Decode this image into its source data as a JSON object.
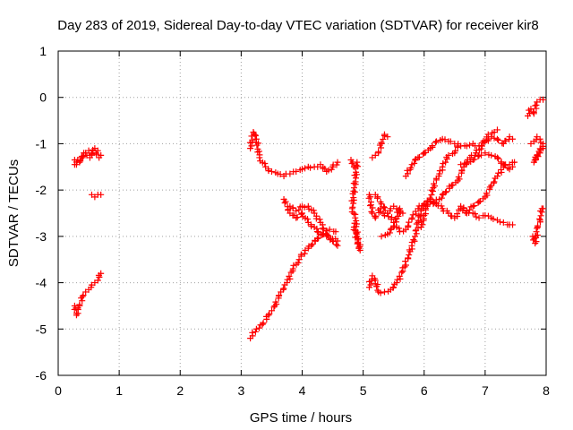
{
  "chart_data": {
    "type": "scatter",
    "title": "Day 283 of 2019, Sidereal Day-to-day VTEC variation (SDTVAR) for receiver kir8",
    "xlabel": "GPS time / hours",
    "ylabel": "SDTVAR / TECUs",
    "xlim": [
      0,
      8
    ],
    "ylim": [
      -6,
      1
    ],
    "xticks": [
      0,
      1,
      2,
      3,
      4,
      5,
      6,
      7,
      8
    ],
    "yticks": [
      -6,
      -5,
      -4,
      -3,
      -2,
      -1,
      0,
      1
    ],
    "grid": true,
    "marker": "+",
    "colors": {
      "series": "#ff0000",
      "grid": "#a0a0a0",
      "axis": "#000000"
    },
    "tracks": [
      [
        [
          0.27,
          -1.45
        ],
        [
          0.32,
          -1.35
        ],
        [
          0.38,
          -1.3
        ],
        [
          0.42,
          -1.2
        ],
        [
          0.47,
          -1.25
        ],
        [
          0.52,
          -1.3
        ],
        [
          0.57,
          -1.15
        ],
        [
          0.62,
          -1.2
        ],
        [
          0.67,
          -1.3
        ],
        [
          0.7,
          -1.25
        ]
      ],
      [
        [
          0.27,
          -1.35
        ],
        [
          0.3,
          -1.45
        ],
        [
          0.35,
          -1.4
        ],
        [
          0.4,
          -1.3
        ],
        [
          0.45,
          -1.2
        ],
        [
          0.5,
          -1.15
        ],
        [
          0.55,
          -1.2
        ],
        [
          0.6,
          -1.1
        ],
        [
          0.65,
          -1.15
        ]
      ],
      [
        [
          0.55,
          -2.1
        ],
        [
          0.6,
          -2.15
        ],
        [
          0.65,
          -2.1
        ],
        [
          0.7,
          -2.1
        ]
      ],
      [
        [
          0.27,
          -4.5
        ],
        [
          0.3,
          -4.7
        ],
        [
          0.35,
          -4.5
        ],
        [
          0.4,
          -4.3
        ],
        [
          0.45,
          -4.2
        ],
        [
          0.5,
          -4.15
        ],
        [
          0.55,
          -4.05
        ],
        [
          0.6,
          -4.0
        ],
        [
          0.65,
          -3.95
        ],
        [
          0.7,
          -3.8
        ]
      ],
      [
        [
          3.15,
          -1.1
        ],
        [
          3.2,
          -0.75
        ],
        [
          3.25,
          -0.9
        ],
        [
          3.3,
          -1.3
        ],
        [
          3.4,
          -1.5
        ],
        [
          3.5,
          -1.6
        ],
        [
          3.6,
          -1.65
        ],
        [
          3.7,
          -1.7
        ],
        [
          3.8,
          -1.65
        ],
        [
          3.9,
          -1.6
        ],
        [
          4.0,
          -1.55
        ],
        [
          4.1,
          -1.5
        ],
        [
          4.2,
          -1.5
        ],
        [
          4.3,
          -1.45
        ],
        [
          4.4,
          -1.6
        ],
        [
          4.5,
          -1.5
        ],
        [
          4.58,
          -1.4
        ]
      ],
      [
        [
          3.15,
          -5.2
        ],
        [
          3.25,
          -5.0
        ],
        [
          3.35,
          -4.9
        ],
        [
          3.45,
          -4.7
        ],
        [
          3.55,
          -4.5
        ],
        [
          3.65,
          -4.2
        ],
        [
          3.75,
          -4.0
        ],
        [
          3.85,
          -3.7
        ],
        [
          3.95,
          -3.5
        ],
        [
          4.05,
          -3.3
        ],
        [
          4.15,
          -3.2
        ],
        [
          4.25,
          -3.05
        ],
        [
          4.35,
          -2.95
        ],
        [
          4.45,
          -2.85
        ],
        [
          4.55,
          -2.9
        ]
      ],
      [
        [
          3.7,
          -2.2
        ],
        [
          3.8,
          -2.5
        ],
        [
          3.9,
          -2.6
        ],
        [
          4.0,
          -2.5
        ],
        [
          4.1,
          -2.7
        ],
        [
          4.2,
          -2.8
        ],
        [
          4.3,
          -2.95
        ],
        [
          4.4,
          -3.0
        ],
        [
          4.5,
          -3.05
        ],
        [
          4.58,
          -3.1
        ]
      ],
      [
        [
          3.8,
          -2.35
        ],
        [
          3.9,
          -2.45
        ],
        [
          4.0,
          -2.35
        ],
        [
          4.1,
          -2.35
        ],
        [
          4.2,
          -2.5
        ],
        [
          4.3,
          -2.7
        ],
        [
          4.4,
          -2.95
        ],
        [
          4.5,
          -3.1
        ],
        [
          4.58,
          -3.2
        ]
      ],
      [
        [
          4.8,
          -1.35
        ],
        [
          4.85,
          -1.5
        ],
        [
          4.9,
          -1.4
        ],
        [
          4.82,
          -2.4
        ],
        [
          4.87,
          -2.6
        ],
        [
          4.9,
          -3.0
        ],
        [
          4.95,
          -3.3
        ],
        [
          4.85,
          -2.8
        ]
      ],
      [
        [
          5.1,
          -2.1
        ],
        [
          5.15,
          -2.5
        ],
        [
          5.2,
          -2.6
        ],
        [
          5.28,
          -2.4
        ],
        [
          5.35,
          -2.55
        ],
        [
          5.4,
          -2.5
        ],
        [
          5.45,
          -2.4
        ],
        [
          5.5,
          -2.35
        ],
        [
          5.55,
          -2.4
        ],
        [
          5.6,
          -2.5
        ]
      ],
      [
        [
          5.15,
          -1.3
        ],
        [
          5.2,
          -1.25
        ],
        [
          5.25,
          -1.2
        ],
        [
          5.3,
          -1.0
        ],
        [
          5.35,
          -0.8
        ],
        [
          5.4,
          -0.85
        ]
      ],
      [
        [
          5.1,
          -4.1
        ],
        [
          5.15,
          -3.85
        ],
        [
          5.2,
          -3.95
        ],
        [
          5.25,
          -4.2
        ],
        [
          5.35,
          -4.2
        ],
        [
          5.45,
          -4.15
        ],
        [
          5.55,
          -4.0
        ],
        [
          5.65,
          -3.75
        ],
        [
          5.75,
          -3.4
        ],
        [
          5.85,
          -3.0
        ],
        [
          5.9,
          -2.7
        ],
        [
          5.95,
          -2.45
        ],
        [
          6.0,
          -2.3
        ],
        [
          6.1,
          -2.2
        ],
        [
          6.2,
          -2.3
        ]
      ],
      [
        [
          5.2,
          -2.1
        ],
        [
          5.3,
          -2.3
        ],
        [
          5.4,
          -2.5
        ],
        [
          5.5,
          -2.7
        ],
        [
          5.6,
          -2.9
        ],
        [
          5.7,
          -2.85
        ],
        [
          5.8,
          -2.6
        ],
        [
          5.9,
          -2.4
        ],
        [
          6.0,
          -2.3
        ],
        [
          6.1,
          -2.25
        ],
        [
          6.2,
          -2.3
        ],
        [
          6.3,
          -2.4
        ],
        [
          6.4,
          -2.5
        ],
        [
          6.5,
          -2.6
        ],
        [
          6.6,
          -2.4
        ],
        [
          6.7,
          -2.5
        ],
        [
          6.8,
          -2.5
        ],
        [
          6.9,
          -2.6
        ],
        [
          7.0,
          -2.55
        ],
        [
          7.1,
          -2.6
        ],
        [
          7.2,
          -2.65
        ],
        [
          7.3,
          -2.7
        ],
        [
          7.4,
          -2.75
        ],
        [
          7.45,
          -2.75
        ]
      ],
      [
        [
          5.3,
          -3.0
        ],
        [
          5.4,
          -2.95
        ],
        [
          5.5,
          -2.8
        ],
        [
          5.6,
          -2.4
        ],
        [
          5.65,
          -2.5
        ]
      ],
      [
        [
          5.7,
          -1.7
        ],
        [
          5.8,
          -1.45
        ],
        [
          5.9,
          -1.3
        ],
        [
          6.0,
          -1.2
        ],
        [
          6.1,
          -1.1
        ],
        [
          6.2,
          -0.95
        ],
        [
          6.3,
          -0.9
        ],
        [
          6.4,
          -0.95
        ],
        [
          6.5,
          -1.0
        ],
        [
          6.6,
          -1.05
        ],
        [
          6.7,
          -1.05
        ],
        [
          6.8,
          -1.0
        ],
        [
          6.9,
          -1.05
        ],
        [
          7.0,
          -0.95
        ],
        [
          7.1,
          -0.85
        ],
        [
          7.2,
          -0.9
        ],
        [
          7.3,
          -1.0
        ],
        [
          7.4,
          -0.85
        ],
        [
          7.45,
          -0.9
        ]
      ],
      [
        [
          5.95,
          -2.8
        ],
        [
          6.0,
          -2.55
        ],
        [
          6.05,
          -2.35
        ],
        [
          6.1,
          -2.2
        ],
        [
          6.15,
          -1.95
        ],
        [
          6.2,
          -1.75
        ],
        [
          6.25,
          -1.65
        ],
        [
          6.3,
          -1.5
        ],
        [
          6.35,
          -1.4
        ],
        [
          6.4,
          -1.25
        ],
        [
          6.5,
          -1.2
        ],
        [
          6.55,
          -1.05
        ]
      ],
      [
        [
          6.15,
          -2.3
        ],
        [
          6.25,
          -2.2
        ],
        [
          6.35,
          -2.05
        ],
        [
          6.45,
          -1.9
        ],
        [
          6.55,
          -1.8
        ],
        [
          6.65,
          -1.5
        ],
        [
          6.75,
          -1.3
        ],
        [
          6.85,
          -1.2
        ],
        [
          6.95,
          -1.05
        ],
        [
          7.05,
          -0.8
        ],
        [
          7.15,
          -0.75
        ],
        [
          7.2,
          -0.7
        ]
      ],
      [
        [
          6.6,
          -2.35
        ],
        [
          6.7,
          -2.45
        ],
        [
          6.8,
          -2.35
        ],
        [
          6.9,
          -2.25
        ],
        [
          7.0,
          -2.15
        ],
        [
          7.1,
          -1.9
        ],
        [
          7.2,
          -1.7
        ],
        [
          7.3,
          -1.5
        ],
        [
          7.4,
          -1.45
        ],
        [
          7.48,
          -1.4
        ]
      ],
      [
        [
          6.6,
          -1.45
        ],
        [
          6.7,
          -1.4
        ],
        [
          6.8,
          -1.35
        ],
        [
          6.9,
          -1.25
        ],
        [
          7.0,
          -1.2
        ],
        [
          7.1,
          -1.25
        ],
        [
          7.2,
          -1.3
        ],
        [
          7.3,
          -1.45
        ],
        [
          7.4,
          -1.55
        ],
        [
          7.45,
          -1.5
        ]
      ],
      [
        [
          7.7,
          -0.4
        ],
        [
          7.75,
          -0.25
        ],
        [
          7.8,
          -0.35
        ],
        [
          7.85,
          -0.1
        ],
        [
          7.9,
          -0.05
        ],
        [
          7.95,
          -0.05
        ]
      ],
      [
        [
          7.75,
          -1.0
        ],
        [
          7.8,
          -0.95
        ],
        [
          7.85,
          -0.85
        ],
        [
          7.9,
          -0.9
        ],
        [
          7.95,
          -1.0
        ],
        [
          7.8,
          -1.4
        ],
        [
          7.85,
          -1.25
        ],
        [
          7.9,
          -1.2
        ],
        [
          7.95,
          -1.1
        ]
      ],
      [
        [
          7.78,
          -3.0
        ],
        [
          7.82,
          -3.15
        ],
        [
          7.86,
          -2.8
        ],
        [
          7.9,
          -2.65
        ],
        [
          7.93,
          -2.4
        ],
        [
          7.95,
          -2.4
        ]
      ]
    ]
  }
}
